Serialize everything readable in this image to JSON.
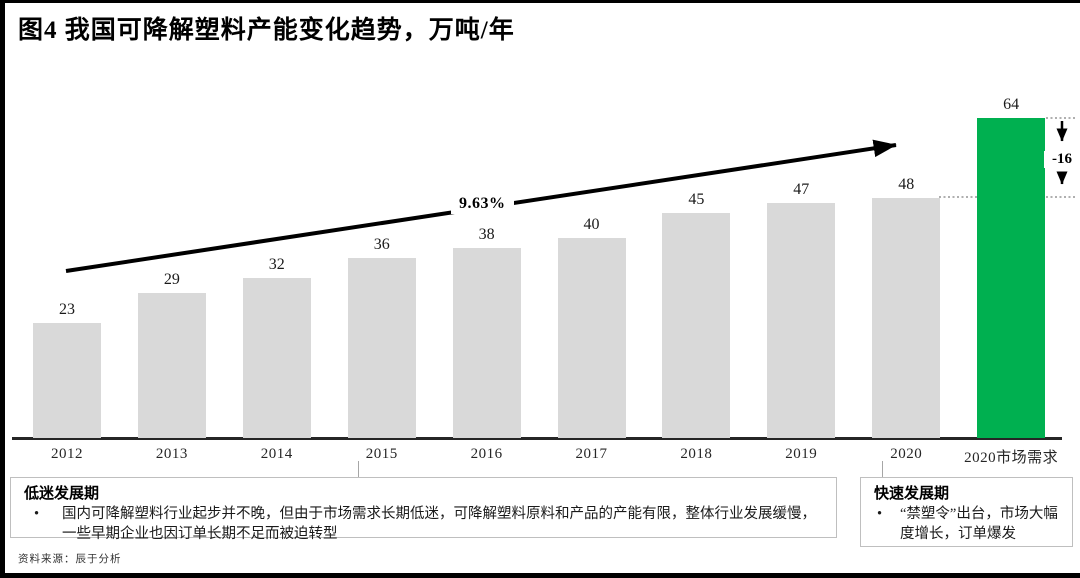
{
  "title": "图4 我国可降解塑料产能变化趋势，万吨/年",
  "chart_data": {
    "type": "bar",
    "title": "图4 我国可降解塑料产能变化趋势，万吨/年",
    "unit": "万吨/年",
    "categories": [
      "2012",
      "2013",
      "2014",
      "2015",
      "2016",
      "2017",
      "2018",
      "2019",
      "2020",
      "2020市场需求"
    ],
    "values": [
      23,
      29,
      32,
      36,
      38,
      40,
      45,
      47,
      48,
      64
    ],
    "highlight_index": 9,
    "bar_color": "#d9d9d9",
    "highlight_color": "#00b050",
    "value_labels": true,
    "grid": false,
    "legend": false,
    "ylim": [
      0,
      70
    ],
    "annotations": {
      "cagr_label": "9.63%",
      "gap_label": "-16",
      "gap_from_value": 48,
      "gap_to_value": 64
    }
  },
  "phases": {
    "left": {
      "title": "低迷发展期",
      "bullet": "国内可降解塑料行业起步并不晚，但由于市场需求长期低迷，可降解塑料原料和产品的产能有限，整体行业发展缓慢，一些早期企业也因订单长期不足而被迫转型"
    },
    "right": {
      "title": "快速发展期",
      "bullet": "“禁塑令”出台，市场大幅度增长，订单爆发"
    }
  },
  "source": "资料来源：辰于分析"
}
